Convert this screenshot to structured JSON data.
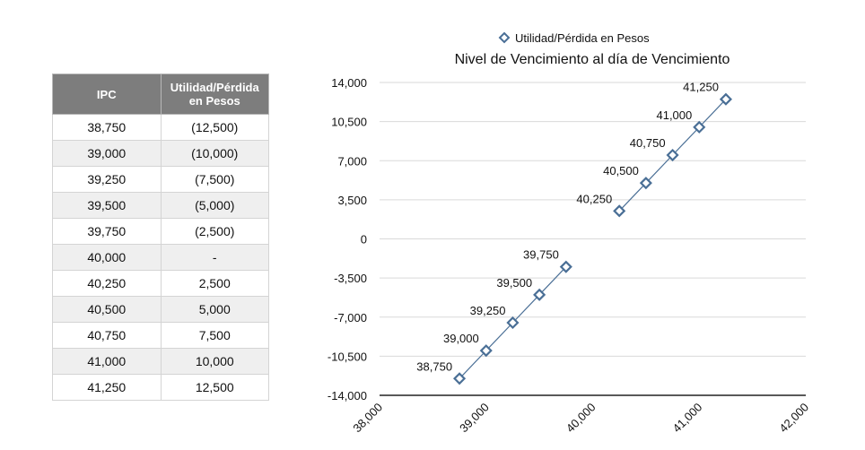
{
  "table": {
    "headers": [
      "IPC",
      "Utilidad/Pérdida en Pesos"
    ],
    "rows": [
      [
        "38,750",
        "(12,500)"
      ],
      [
        "39,000",
        "(10,000)"
      ],
      [
        "39,250",
        "(7,500)"
      ],
      [
        "39,500",
        "(5,000)"
      ],
      [
        "39,750",
        "(2,500)"
      ],
      [
        "40,000",
        "-"
      ],
      [
        "40,250",
        "2,500"
      ],
      [
        "40,500",
        "5,000"
      ],
      [
        "40,750",
        "7,500"
      ],
      [
        "41,000",
        "10,000"
      ],
      [
        "41,250",
        "12,500"
      ]
    ]
  },
  "chart_data": {
    "type": "scatter",
    "title": "Nivel de Vencimiento al día de Vencimiento",
    "legend_position": "top",
    "xlim": [
      38000,
      42000
    ],
    "ylim": [
      -14000,
      14000
    ],
    "x_ticks": [
      38000,
      39000,
      40000,
      41000,
      42000
    ],
    "x_tick_labels": [
      "38,000",
      "39,000",
      "40,000",
      "41,000",
      "42,000"
    ],
    "y_ticks": [
      14000,
      10500,
      7000,
      3500,
      0,
      -3500,
      -7000,
      -10500,
      -14000
    ],
    "y_tick_labels": [
      "14,000",
      "10,500",
      "7,000",
      "3,500",
      "0",
      "-3,500",
      "-7,000",
      "-10,500",
      "-14,000"
    ],
    "grid": true,
    "color": "#4a6f96",
    "series": [
      {
        "name": "Utilidad/Pérdida en Pesos",
        "points": [
          {
            "x": 38750,
            "y": -12500,
            "label": "38,750"
          },
          {
            "x": 39000,
            "y": -10000,
            "label": "39,000"
          },
          {
            "x": 39250,
            "y": -7500,
            "label": "39,250"
          },
          {
            "x": 39500,
            "y": -5000,
            "label": "39,500"
          },
          {
            "x": 39750,
            "y": -2500,
            "label": "39,750"
          },
          {
            "x": 40250,
            "y": 2500,
            "label": "40,250"
          },
          {
            "x": 40500,
            "y": 5000,
            "label": "40,500"
          },
          {
            "x": 40750,
            "y": 7500,
            "label": "40,750"
          },
          {
            "x": 41000,
            "y": 10000,
            "label": "41,000"
          },
          {
            "x": 41250,
            "y": 12500,
            "label": "41,250"
          }
        ]
      }
    ]
  }
}
